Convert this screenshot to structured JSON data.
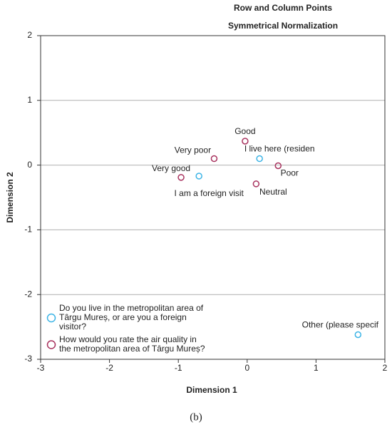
{
  "chart_data": {
    "type": "scatter",
    "title": "Row and Column Points",
    "subtitle": "Symmetrical Normalization",
    "x_label": "Dimension 1",
    "y_label": "Dimension 2",
    "xlim": [
      -3,
      2
    ],
    "xticks": [
      -3,
      -2,
      -1,
      0,
      1,
      2
    ],
    "ylim": [
      2,
      -3
    ],
    "yticks": [
      2,
      1,
      0,
      -1,
      -2,
      -3
    ],
    "grid": true,
    "legend": "lower left",
    "series": [
      {
        "name": "Do you live in the metropolitan area of Târgu Mureș, or are you a foreign visitor?",
        "color": "#3cb4e6",
        "labels": [
          "I live here (residen",
          "I am a foreign visit",
          "Other (please specif"
        ],
        "x": [
          0.18,
          -0.7,
          1.61
        ],
        "values": [
          0.1,
          -0.17,
          -2.62
        ]
      },
      {
        "name": "How would you rate the air quality in the metropolitan area of Târgu Mureș?",
        "color": "#a8325e",
        "labels": [
          "Very good",
          "Good",
          "Neutral",
          "Poor",
          "Very poor"
        ],
        "x": [
          -0.96,
          -0.03,
          0.13,
          0.45,
          -0.48
        ],
        "values": [
          -0.19,
          0.37,
          -0.29,
          -0.01,
          0.1
        ]
      }
    ],
    "caption": "(b)"
  }
}
